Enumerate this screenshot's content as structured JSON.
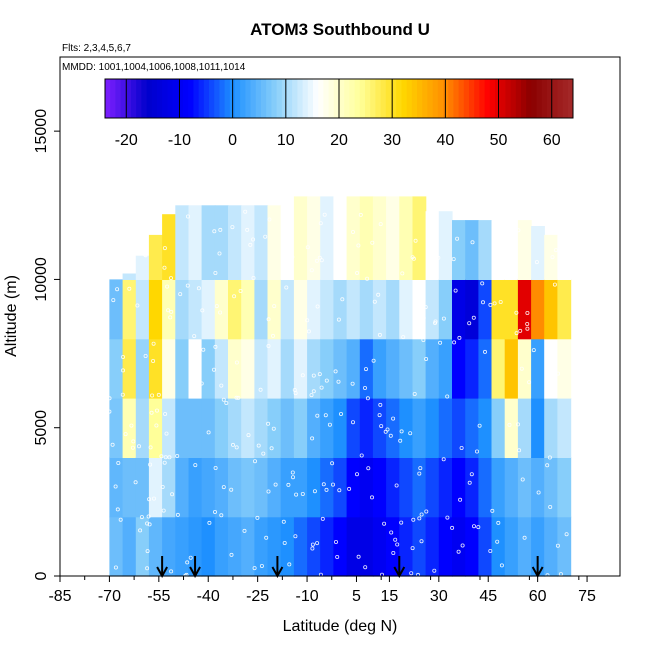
{
  "chart_data": {
    "type": "heatmap",
    "title": "ATOM3 Southbound U",
    "flights_text": "Flts: 2,3,4,5,6,7",
    "dates_text": "MMDD: 1001,1004,1006,1008,1011,1014",
    "xlabel": "Latitude (deg N)",
    "ylabel": "Altitude (m)",
    "xlim": [
      -85,
      85
    ],
    "ylim": [
      0,
      17500
    ],
    "x_ticks": [
      -85,
      -70,
      -55,
      -40,
      -25,
      -10,
      5,
      15,
      30,
      45,
      60,
      75
    ],
    "x_tick_labels": [
      "-85",
      "-70",
      "-55",
      "-40",
      "-25",
      "-10",
      "5",
      "15",
      "30",
      "45",
      "60",
      "75"
    ],
    "y_ticks": [
      0,
      5000,
      10000,
      15000
    ],
    "y_tick_labels": [
      "0",
      "5000",
      "10000",
      "15000"
    ],
    "colorbar": {
      "range": [
        -24,
        64
      ],
      "ticks": [
        -20,
        -10,
        0,
        10,
        20,
        30,
        40,
        50,
        60
      ],
      "tick_labels": [
        "-20",
        "-10",
        "0",
        "10",
        "20",
        "30",
        "40",
        "50",
        "60"
      ],
      "colors": [
        "#7f1fff",
        "#0000cc",
        "#0000ff",
        "#1e90ff",
        "#87cefa",
        "#ffffff",
        "#ffff99",
        "#ffd700",
        "#ff8c00",
        "#ff0000",
        "#8b0000",
        "#a52a2a"
      ]
    },
    "arrow_latitudes": [
      -54,
      -44,
      -19,
      18,
      60
    ],
    "columns": [
      {
        "lat0": -70,
        "lat1": -66,
        "top": 10000,
        "u": [
          6,
          5,
          7,
          8,
          6,
          7
        ]
      },
      {
        "lat0": -66,
        "lat1": -62,
        "top": 10200,
        "u": [
          4,
          6,
          22,
          28,
          26,
          12
        ]
      },
      {
        "lat0": -62,
        "lat1": -58,
        "top": 10800,
        "u": [
          8,
          6,
          10,
          9,
          12,
          14
        ]
      },
      {
        "lat0": -58,
        "lat1": -54,
        "top": 11500,
        "u": [
          5,
          14,
          24,
          30,
          32,
          28
        ]
      },
      {
        "lat0": -54,
        "lat1": -50,
        "top": 12200,
        "u": [
          3,
          10,
          12,
          18,
          22,
          30
        ]
      },
      {
        "lat0": -50,
        "lat1": -46,
        "top": 12500,
        "u": [
          2,
          4,
          6,
          8,
          10,
          12
        ]
      },
      {
        "lat0": -46,
        "lat1": -42,
        "top": 12500,
        "u": [
          1,
          2,
          6,
          16,
          12,
          14
        ]
      },
      {
        "lat0": -42,
        "lat1": -38,
        "top": 12500,
        "u": [
          0,
          3,
          6,
          8,
          14,
          10
        ]
      },
      {
        "lat0": -38,
        "lat1": -34,
        "top": 12500,
        "u": [
          2,
          4,
          8,
          12,
          20,
          10
        ]
      },
      {
        "lat0": -34,
        "lat1": -30,
        "top": 12500,
        "u": [
          3,
          6,
          10,
          20,
          26,
          12
        ]
      },
      {
        "lat0": -30,
        "lat1": -26,
        "top": 12500,
        "u": [
          4,
          7,
          12,
          18,
          22,
          14
        ]
      },
      {
        "lat0": -26,
        "lat1": -22,
        "top": 12500,
        "u": [
          2,
          6,
          10,
          12,
          10,
          12
        ]
      },
      {
        "lat0": -22,
        "lat1": -18,
        "top": 12500,
        "u": [
          1,
          4,
          8,
          14,
          20,
          18
        ]
      },
      {
        "lat0": -18,
        "lat1": -14,
        "top": 12500,
        "u": [
          0,
          2,
          6,
          10,
          12,
          16
        ]
      },
      {
        "lat0": -14,
        "lat1": -10,
        "top": 12800,
        "u": [
          -2,
          2,
          8,
          14,
          18,
          20
        ]
      },
      {
        "lat0": -10,
        "lat1": -6,
        "top": 12800,
        "u": [
          -4,
          0,
          4,
          10,
          14,
          18
        ]
      },
      {
        "lat0": -6,
        "lat1": -2,
        "top": 12800,
        "u": [
          -6,
          -2,
          2,
          8,
          12,
          14
        ]
      },
      {
        "lat0": -2,
        "lat1": 2,
        "top": 12800,
        "u": [
          -8,
          -4,
          0,
          6,
          10,
          16
        ]
      },
      {
        "lat0": 2,
        "lat1": 6,
        "top": 12800,
        "u": [
          -12,
          -8,
          -4,
          4,
          12,
          20
        ]
      },
      {
        "lat0": 6,
        "lat1": 10,
        "top": 12800,
        "u": [
          -12,
          -10,
          -6,
          -2,
          10,
          22
        ]
      },
      {
        "lat0": 10,
        "lat1": 14,
        "top": 12800,
        "u": [
          -10,
          -8,
          -4,
          2,
          12,
          20
        ]
      },
      {
        "lat0": 14,
        "lat1": 18,
        "top": 12800,
        "u": [
          -8,
          -6,
          -2,
          4,
          10,
          18
        ]
      },
      {
        "lat0": 18,
        "lat1": 22,
        "top": 12800,
        "u": [
          -6,
          -4,
          0,
          6,
          14,
          22
        ]
      },
      {
        "lat0": 22,
        "lat1": 26,
        "top": 12800,
        "u": [
          -4,
          -2,
          2,
          8,
          16,
          26
        ]
      },
      {
        "lat0": 26,
        "lat1": 30,
        "top": 12300,
        "u": [
          -6,
          -4,
          0,
          4,
          12,
          16
        ]
      },
      {
        "lat0": 30,
        "lat1": 34,
        "top": 12300,
        "u": [
          -8,
          -6,
          -2,
          2,
          8,
          14
        ]
      },
      {
        "lat0": 34,
        "lat1": 38,
        "top": 12000,
        "u": [
          -10,
          -8,
          -4,
          -8,
          -12,
          8
        ]
      },
      {
        "lat0": 38,
        "lat1": 42,
        "top": 12000,
        "u": [
          -8,
          -6,
          -2,
          -6,
          -14,
          6
        ]
      },
      {
        "lat0": 42,
        "lat1": 46,
        "top": 12000,
        "u": [
          -4,
          -2,
          0,
          -2,
          -4,
          10
        ]
      },
      {
        "lat0": 46,
        "lat1": 50,
        "top": 12000,
        "u": [
          0,
          2,
          8,
          26,
          30,
          16
        ]
      },
      {
        "lat0": 50,
        "lat1": 54,
        "top": 12000,
        "u": [
          2,
          4,
          20,
          34,
          30,
          16
        ]
      },
      {
        "lat0": 54,
        "lat1": 58,
        "top": 12000,
        "u": [
          4,
          6,
          10,
          20,
          50,
          18
        ]
      },
      {
        "lat0": 58,
        "lat1": 62,
        "top": 11800,
        "u": [
          2,
          4,
          0,
          2,
          40,
          14
        ]
      },
      {
        "lat0": 62,
        "lat1": 66,
        "top": 11500,
        "u": [
          4,
          6,
          10,
          16,
          34,
          18
        ]
      },
      {
        "lat0": 66,
        "lat1": 70,
        "top": 11500,
        "u": [
          6,
          8,
          12,
          18,
          28,
          16
        ]
      }
    ],
    "level_edges": [
      0,
      2000,
      4000,
      6000,
      8000,
      10000,
      13000
    ]
  }
}
